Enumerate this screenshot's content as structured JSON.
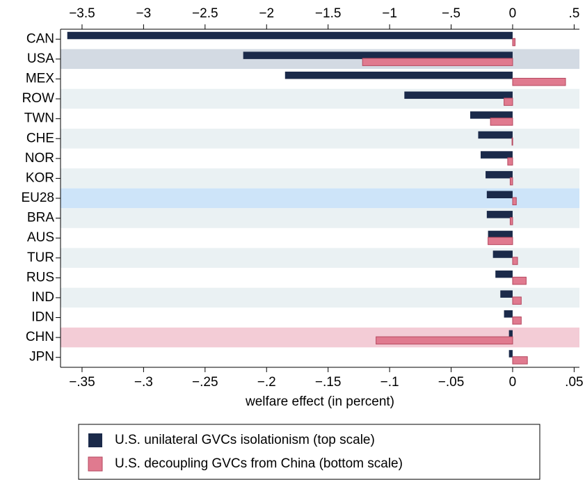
{
  "chart_data": {
    "type": "bar",
    "orientation": "horizontal",
    "xlabel": "welfare effect (in percent)",
    "categories": [
      "CAN",
      "USA",
      "MEX",
      "ROW",
      "TWN",
      "CHE",
      "NOR",
      "KOR",
      "EU28",
      "BRA",
      "AUS",
      "TUR",
      "RUS",
      "IND",
      "IDN",
      "CHN",
      "JPN"
    ],
    "band_colors": [
      "#ffffff",
      "#d3dae3",
      "#ffffff",
      "#eaf1f3",
      "#ffffff",
      "#eaf1f3",
      "#ffffff",
      "#eaf1f3",
      "#cde4f9",
      "#eaf1f3",
      "#ffffff",
      "#eaf1f3",
      "#ffffff",
      "#eaf1f3",
      "#ffffff",
      "#f3ccd6",
      "#ffffff"
    ],
    "series": [
      {
        "name": "U.S. unilateral GVCs isolationism (top scale)",
        "color": "#1b2a4a",
        "axis": "x2",
        "values": [
          -3.62,
          -2.19,
          -1.85,
          -0.88,
          -0.345,
          -0.28,
          -0.26,
          -0.22,
          -0.21,
          -0.21,
          -0.2,
          -0.16,
          -0.14,
          -0.1,
          -0.07,
          -0.03,
          -0.03
        ]
      },
      {
        "name": "U.S. decoupling GVCs from China (bottom scale)",
        "color": "#e07a8f",
        "edge_color": "#b5485f",
        "axis": "x",
        "values": [
          0.002,
          -0.122,
          0.043,
          -0.007,
          -0.018,
          -0.0005,
          -0.004,
          -0.002,
          0.003,
          -0.002,
          -0.02,
          0.004,
          0.011,
          0.007,
          0.007,
          -0.111,
          0.012
        ]
      }
    ],
    "xlim": [
      -0.3675,
      0.0543
    ],
    "xticks": [
      {
        "value": -0.35,
        "label": "−.35"
      },
      {
        "value": -0.3,
        "label": "−.3"
      },
      {
        "value": -0.25,
        "label": "−.25"
      },
      {
        "value": -0.2,
        "label": "−.2"
      },
      {
        "value": -0.15,
        "label": "−.15"
      },
      {
        "value": -0.1,
        "label": "−.1"
      },
      {
        "value": -0.05,
        "label": "−.05"
      },
      0,
      {
        "value": 0.05,
        "label": ".05"
      }
    ],
    "x2lim": [
      -3.675,
      0.543
    ],
    "x2ticks": [
      {
        "value": -3.5,
        "label": "−3.5"
      },
      {
        "value": -3,
        "label": "−3"
      },
      {
        "value": -2.5,
        "label": "−2.5"
      },
      {
        "value": -2,
        "label": "−2"
      },
      {
        "value": -1.5,
        "label": "−1.5"
      },
      {
        "value": -1,
        "label": "−1"
      },
      {
        "value": -0.5,
        "label": "−.5"
      },
      0,
      {
        "value": 0.5,
        "label": ".5"
      }
    ],
    "legend": "bottom"
  }
}
